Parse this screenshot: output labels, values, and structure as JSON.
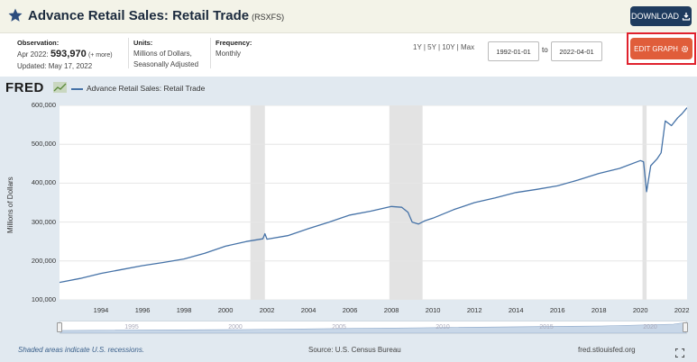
{
  "header": {
    "title": "Advance Retail Sales: Retail Trade",
    "series_id": "(RSXFS)",
    "download_label": "DOWNLOAD"
  },
  "info": {
    "observation_label": "Observation:",
    "observation_date": "Apr 2022:",
    "observation_value": "593,970",
    "observation_more": "(+ more)",
    "updated": "Updated: May 17, 2022",
    "units_label": "Units:",
    "units_line1": "Millions of Dollars,",
    "units_line2": "Seasonally Adjusted",
    "frequency_label": "Frequency:",
    "frequency_value": "Monthly"
  },
  "controls": {
    "ranges": [
      "1Y",
      "5Y",
      "10Y",
      "Max"
    ],
    "start_date": "1992-01-01",
    "to_label": "to",
    "end_date": "2022-04-01",
    "edit_label": "EDIT GRAPH"
  },
  "graph": {
    "logo": "FRED",
    "legend": "Advance Retail Sales: Retail Trade",
    "y_axis_title": "Millions of Dollars",
    "footer_left": "Shaded areas indicate U.S. recessions.",
    "footer_source": "Source: U.S. Census Bureau",
    "footer_right": "fred.stlouisfed.org",
    "navigator_labels": [
      "1995",
      "2000",
      "2005",
      "2010",
      "2015",
      "2020"
    ]
  },
  "colors": {
    "line": "#4572a7",
    "recession": "#e3e3e3",
    "header_bg": "#f3f3e8",
    "download_btn": "#1e3b5e",
    "edit_btn": "#e05d3a",
    "highlight_frame": "#e0212d"
  },
  "chart_data": {
    "type": "line",
    "title": "Advance Retail Sales: Retail Trade",
    "ylabel": "Millions of Dollars",
    "xlim": [
      1992.0,
      2022.25
    ],
    "ylim": [
      100000,
      600000
    ],
    "y_ticks": [
      "100,000",
      "200,000",
      "300,000",
      "400,000",
      "500,000",
      "600,000"
    ],
    "x_ticks": [
      "1994",
      "1996",
      "1998",
      "2000",
      "2002",
      "2004",
      "2006",
      "2008",
      "2010",
      "2012",
      "2014",
      "2016",
      "2018",
      "2020",
      "2022"
    ],
    "recessions": [
      [
        2001.2,
        2001.9
      ],
      [
        2007.9,
        2009.5
      ],
      [
        2020.1,
        2020.3
      ]
    ],
    "grid": true,
    "series": [
      {
        "name": "Advance Retail Sales: Retail Trade",
        "x": [
          1992.0,
          1993.0,
          1994.0,
          1995.0,
          1996.0,
          1997.0,
          1998.0,
          1999.0,
          2000.0,
          2001.0,
          2001.8,
          2001.9,
          2002.0,
          2003.0,
          2004.0,
          2005.0,
          2006.0,
          2007.0,
          2008.0,
          2008.5,
          2008.8,
          2009.0,
          2009.3,
          2009.6,
          2010.0,
          2011.0,
          2012.0,
          2013.0,
          2014.0,
          2015.0,
          2016.0,
          2017.0,
          2018.0,
          2019.0,
          2020.0,
          2020.15,
          2020.3,
          2020.5,
          2020.8,
          2021.0,
          2021.2,
          2021.5,
          2021.8,
          2022.0,
          2022.25
        ],
        "y": [
          145000,
          155000,
          168000,
          178000,
          188000,
          196000,
          205000,
          220000,
          238000,
          250000,
          257000,
          270000,
          256000,
          265000,
          283000,
          300000,
          318000,
          328000,
          340000,
          338000,
          325000,
          300000,
          295000,
          303000,
          310000,
          332000,
          350000,
          362000,
          376000,
          384000,
          393000,
          408000,
          425000,
          438000,
          458000,
          455000,
          378000,
          445000,
          462000,
          478000,
          560000,
          548000,
          568000,
          578000,
          593970
        ]
      }
    ]
  }
}
